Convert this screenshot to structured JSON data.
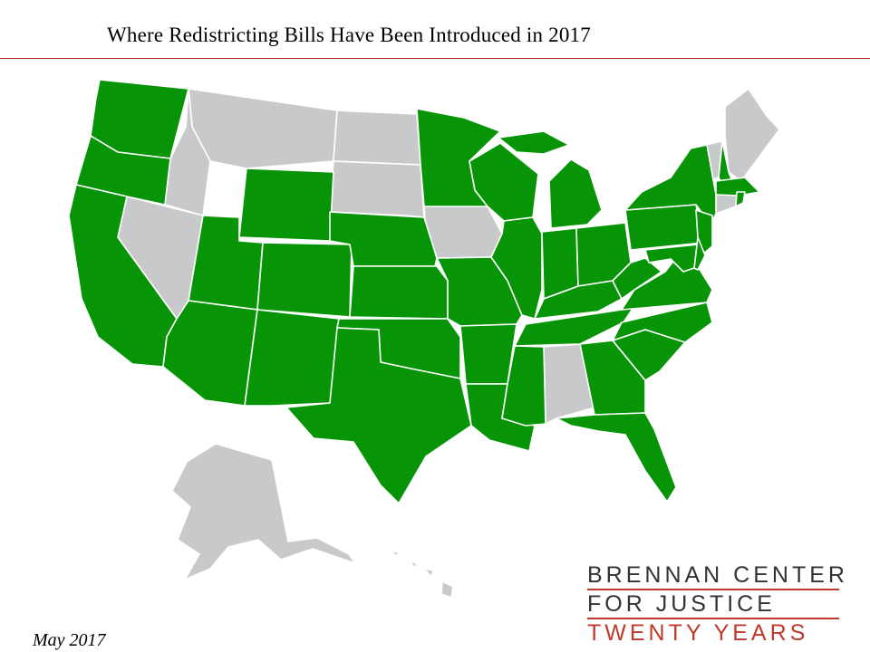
{
  "title": "Where Redistricting Bills Have Been Introduced in 2017",
  "date": "May 2017",
  "logo": {
    "line1": "BRENNAN CENTER",
    "line2": "FOR JUSTICE",
    "line3": "TWENTY YEARS"
  },
  "colors": {
    "bill_introduced": "#079507",
    "no_bill": "#c8c9cb",
    "border": "#ffffff",
    "title_rule": "#b22222",
    "logo_red": "#c0392b"
  },
  "states_with_bills": [
    "WA",
    "OR",
    "CA",
    "WY",
    "UT",
    "AZ",
    "CO",
    "NM",
    "NE",
    "KS",
    "OK",
    "TX",
    "MN",
    "MO",
    "AR",
    "LA",
    "WI",
    "IL",
    "MS",
    "MI",
    "IN",
    "KY",
    "TN",
    "OH",
    "GA",
    "FL",
    "SC",
    "NC",
    "VA",
    "WV",
    "PA",
    "NY",
    "NJ",
    "MD",
    "DE",
    "NH",
    "MA",
    "RI"
  ],
  "states_without_bills": [
    "AK",
    "HI",
    "ID",
    "MT",
    "ND",
    "SD",
    "NV",
    "IA",
    "AL",
    "ME",
    "VT",
    "CT"
  ]
}
